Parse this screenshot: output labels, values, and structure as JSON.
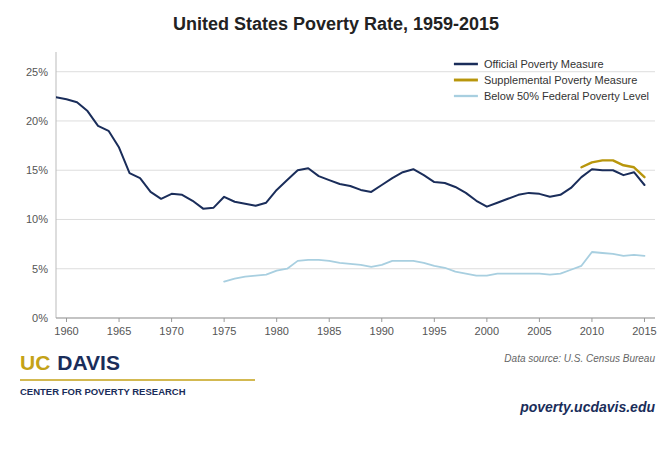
{
  "chart_data": {
    "type": "line",
    "title": "United States Poverty Rate, 1959-2015",
    "xlim": [
      1959,
      2016
    ],
    "xticks": [
      1960,
      1965,
      1970,
      1975,
      1980,
      1985,
      1990,
      1995,
      2000,
      2005,
      2010,
      2015
    ],
    "ylim": [
      0,
      27
    ],
    "yticks": [
      {
        "value": 0,
        "label": "0%"
      },
      {
        "value": 5,
        "label": "5%"
      },
      {
        "value": 10,
        "label": "10%"
      },
      {
        "value": 15,
        "label": "15%"
      },
      {
        "value": 20,
        "label": "20%"
      },
      {
        "value": 25,
        "label": "25%"
      }
    ],
    "grid": true,
    "legend": "upper right",
    "series": [
      {
        "name": "Official Poverty Measure",
        "color": "#1a2d5a",
        "x": [
          1959,
          1960,
          1961,
          1962,
          1963,
          1964,
          1965,
          1966,
          1967,
          1968,
          1969,
          1970,
          1971,
          1972,
          1973,
          1974,
          1975,
          1976,
          1977,
          1978,
          1979,
          1980,
          1981,
          1982,
          1983,
          1984,
          1985,
          1986,
          1987,
          1988,
          1989,
          1990,
          1991,
          1992,
          1993,
          1994,
          1995,
          1996,
          1997,
          1998,
          1999,
          2000,
          2001,
          2002,
          2003,
          2004,
          2005,
          2006,
          2007,
          2008,
          2009,
          2010,
          2011,
          2012,
          2013,
          2014,
          2015
        ],
        "values": [
          22.4,
          22.2,
          21.9,
          21.0,
          19.5,
          19.0,
          17.3,
          14.7,
          14.2,
          12.8,
          12.1,
          12.6,
          12.5,
          11.9,
          11.1,
          11.2,
          12.3,
          11.8,
          11.6,
          11.4,
          11.7,
          13.0,
          14.0,
          15.0,
          15.2,
          14.4,
          14.0,
          13.6,
          13.4,
          13.0,
          12.8,
          13.5,
          14.2,
          14.8,
          15.1,
          14.5,
          13.8,
          13.7,
          13.3,
          12.7,
          11.9,
          11.3,
          11.7,
          12.1,
          12.5,
          12.7,
          12.6,
          12.3,
          12.5,
          13.2,
          14.3,
          15.1,
          15.0,
          15.0,
          14.5,
          14.8,
          13.5
        ]
      },
      {
        "name": "Supplemental Poverty Measure",
        "color": "#b8960c",
        "x": [
          2009,
          2010,
          2011,
          2012,
          2013,
          2014,
          2015
        ],
        "values": [
          15.3,
          15.8,
          16.0,
          16.0,
          15.5,
          15.3,
          14.3
        ]
      },
      {
        "name": "Below 50% Federal Poverty Level",
        "color": "#a8cfe0",
        "x": [
          1975,
          1976,
          1977,
          1978,
          1979,
          1980,
          1981,
          1982,
          1983,
          1984,
          1985,
          1986,
          1987,
          1988,
          1989,
          1990,
          1991,
          1992,
          1993,
          1994,
          1995,
          1996,
          1997,
          1998,
          1999,
          2000,
          2001,
          2002,
          2003,
          2004,
          2005,
          2006,
          2007,
          2008,
          2009,
          2010,
          2011,
          2012,
          2013,
          2014,
          2015
        ],
        "values": [
          3.7,
          4.0,
          4.2,
          4.3,
          4.4,
          4.8,
          5.0,
          5.8,
          5.9,
          5.9,
          5.8,
          5.6,
          5.5,
          5.4,
          5.2,
          5.4,
          5.8,
          5.8,
          5.8,
          5.6,
          5.3,
          5.1,
          4.7,
          4.5,
          4.3,
          4.3,
          4.5,
          4.5,
          4.5,
          4.5,
          4.5,
          4.4,
          4.5,
          4.9,
          5.3,
          6.7,
          6.6,
          6.5,
          6.3,
          6.4,
          6.3
        ]
      }
    ],
    "annotations": [
      {
        "text": "UC",
        "color": "#c4a217"
      },
      {
        "text": "DAVIS",
        "color": "#1a2d5a"
      },
      {
        "text": "CENTER FOR POVERTY RESEARCH",
        "color": "#1a2d5a"
      },
      {
        "text": "Data source: U.S. Census Bureau",
        "color": "#666666"
      },
      {
        "text": "poverty.ucdavis.edu",
        "color": "#1a2d5a"
      }
    ]
  }
}
